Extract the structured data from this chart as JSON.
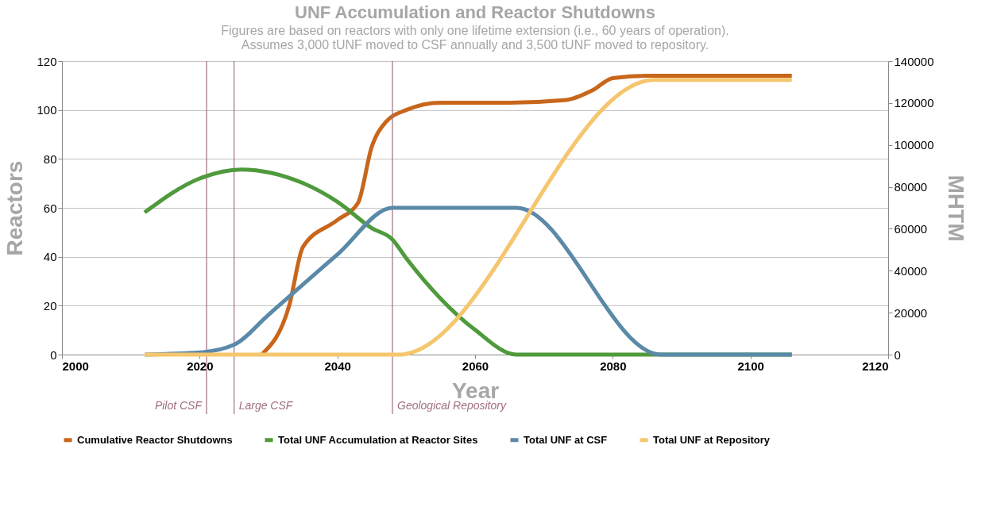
{
  "chart_data": {
    "type": "line",
    "title": "UNF Accumulation and Reactor Shutdowns",
    "subtitle": [
      "Figures are based on reactors with only one lifetime extension (i.e., 60 years of operation).",
      "Assumes 3,000 tUNF moved to CSF annually and 3,500 tUNF moved to repository."
    ],
    "xlabel": "Year",
    "ylabel": "Reactors",
    "y2label": "MHTM",
    "xlim": [
      2000,
      2120
    ],
    "xticks": [
      2000,
      2020,
      2040,
      2060,
      2080,
      2100,
      2120
    ],
    "ylim": [
      0,
      120
    ],
    "yticks": [
      0,
      20,
      40,
      60,
      80,
      100,
      120
    ],
    "y2lim": [
      0,
      140000
    ],
    "y2ticks": [
      0,
      20000,
      40000,
      60000,
      80000,
      100000,
      120000,
      140000
    ],
    "grid": "y",
    "legend": "bottom",
    "line_style": "solid",
    "ref_lines": [
      {
        "axis": "x",
        "value": 2021,
        "label": "Pilot CSF",
        "color": "#a07080"
      },
      {
        "axis": "x",
        "value": 2025,
        "label": "Large CSF",
        "color": "#a07080"
      },
      {
        "axis": "x",
        "value": 2048,
        "label": "Geological Repository",
        "color": "#a07080"
      }
    ],
    "series": [
      {
        "name": "Cumulative Reactor Shutdowns",
        "color": "#c8661b",
        "x": [
          2029,
          2033,
          2035,
          2040,
          2043,
          2045,
          2047,
          2050,
          2055,
          2065,
          2073,
          2077,
          2080,
          2085,
          2106
        ],
        "values": [
          0,
          20,
          44,
          55,
          62,
          85,
          95,
          100,
          103,
          103,
          104,
          108,
          113,
          114,
          114
        ]
      },
      {
        "name": "Total UNF Accumulation at Reactor Sites",
        "color": "#4f9a3c",
        "axis": "y2",
        "x": [
          2012,
          2020,
          2026,
          2035,
          2040,
          2045,
          2048,
          2050,
          2060,
          2066,
          2085,
          2106
        ],
        "values": [
          67800,
          84000,
          88300,
          81800,
          72900,
          60300,
          54900,
          46000,
          11800,
          0,
          0,
          0
        ]
      },
      {
        "name": "Total UNF at CSF",
        "color": "#5b89a8",
        "axis": "y2",
        "x": [
          2012,
          2020,
          2025,
          2030,
          2040,
          2048,
          2066,
          2087,
          2106
        ],
        "values": [
          0,
          1000,
          4700,
          19000,
          47700,
          70000,
          70000,
          0,
          0
        ]
      },
      {
        "name": "Total UNF at Repository",
        "color": "#f5c66e",
        "axis": "y2",
        "x": [
          2012,
          2049,
          2086,
          2106
        ],
        "values": [
          0,
          0,
          131000,
          131000
        ]
      }
    ]
  }
}
